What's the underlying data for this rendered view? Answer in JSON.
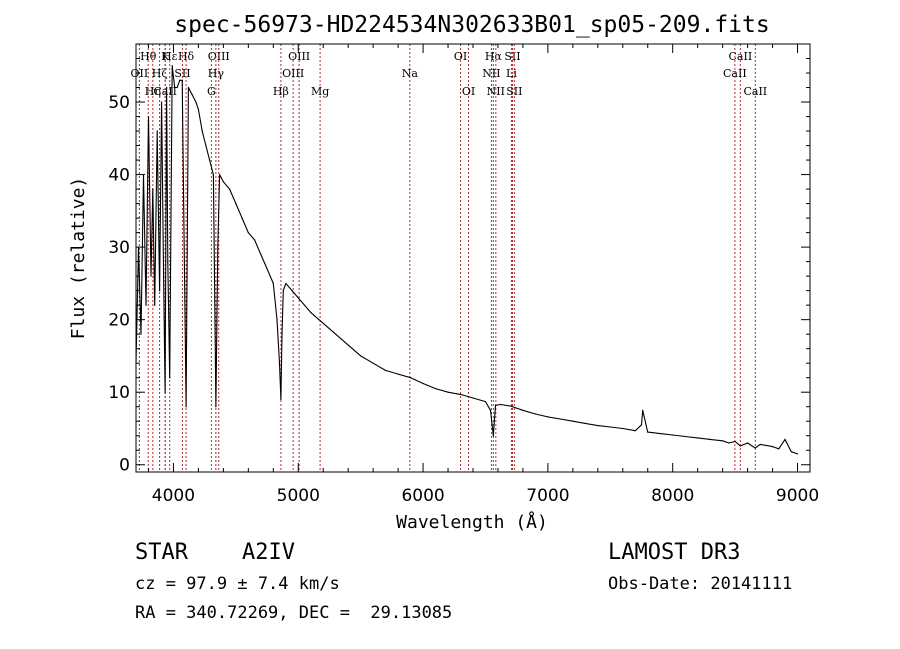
{
  "chart_data": {
    "type": "line",
    "title": "spec-56973-HD224534N302633B01_sp05-209.fits",
    "xlabel": "Wavelength (Å)",
    "ylabel": "Flux (relative)",
    "xlim": [
      3700,
      9100
    ],
    "ylim": [
      -1,
      58
    ],
    "xticks": [
      4000,
      5000,
      6000,
      7000,
      8000,
      9000
    ],
    "yticks": [
      0,
      10,
      20,
      30,
      40,
      50
    ],
    "series": [
      {
        "name": "spectrum",
        "color": "#000000",
        "x": [
          3700,
          3720,
          3740,
          3760,
          3780,
          3800,
          3820,
          3835,
          3850,
          3870,
          3889,
          3905,
          3920,
          3933,
          3945,
          3955,
          3970,
          3990,
          4010,
          4030,
          4050,
          4070,
          4101,
          4120,
          4150,
          4180,
          4200,
          4230,
          4260,
          4290,
          4320,
          4340,
          4355,
          4370,
          4400,
          4450,
          4500,
          4550,
          4600,
          4650,
          4700,
          4750,
          4800,
          4830,
          4850,
          4861,
          4870,
          4880,
          4900,
          4950,
          5000,
          5100,
          5200,
          5300,
          5400,
          5500,
          5600,
          5700,
          5800,
          5900,
          6000,
          6100,
          6200,
          6300,
          6400,
          6500,
          6540,
          6563,
          6580,
          6620,
          6700,
          6800,
          6900,
          7000,
          7100,
          7200,
          7300,
          7400,
          7500,
          7600,
          7700,
          7750,
          7760,
          7800,
          7900,
          8000,
          8100,
          8200,
          8300,
          8400,
          8450,
          8500,
          8542,
          8600,
          8662,
          8700,
          8800,
          8850,
          8900,
          8950,
          9000
        ],
        "values": [
          14,
          30,
          18,
          40,
          22,
          48,
          26,
          38,
          22,
          46,
          24,
          50,
          27,
          10,
          52,
          28,
          12,
          55,
          52,
          52,
          53,
          53,
          8,
          52,
          51,
          50,
          49,
          46,
          44,
          42,
          40,
          8,
          30,
          40,
          39,
          38,
          36,
          34,
          32,
          31,
          29,
          27,
          25,
          20,
          14,
          9,
          18,
          24,
          25,
          24,
          23,
          21,
          19.5,
          18,
          16.5,
          15,
          14,
          13,
          12.5,
          12,
          11.2,
          10.5,
          10,
          9.7,
          9.2,
          8.7,
          7.5,
          4,
          8.2,
          8.3,
          8.1,
          7.5,
          7,
          6.6,
          6.3,
          6,
          5.7,
          5.4,
          5.2,
          5,
          4.7,
          5.5,
          7.5,
          4.5,
          4.3,
          4.1,
          3.9,
          3.7,
          3.5,
          3.3,
          3,
          3.2,
          2.6,
          3,
          2.3,
          2.8,
          2.5,
          2.2,
          3.5,
          1.8,
          1.5
        ]
      }
    ],
    "lines": [
      {
        "label": "CaII",
        "wavelength": 3934,
        "row": 3
      },
      {
        "label": "OII",
        "wavelength": 3727,
        "row": 2
      },
      {
        "label": "Hθ",
        "wavelength": 3798,
        "row": 1
      },
      {
        "label": "Hη",
        "wavelength": 3835,
        "row": 3
      },
      {
        "label": "Hζ",
        "wavelength": 3889,
        "row": 2
      },
      {
        "label": "Hε",
        "wavelength": 3970,
        "row": 1
      },
      {
        "label": "K",
        "wavelength": 3934,
        "row": 1
      },
      {
        "label": "Hδ",
        "wavelength": 4101,
        "row": 1
      },
      {
        "label": "SII",
        "wavelength": 4072,
        "row": 2
      },
      {
        "label": "OIII",
        "wavelength": 4363,
        "row": 1
      },
      {
        "label": "Hγ",
        "wavelength": 4340,
        "row": 2
      },
      {
        "label": "G",
        "wavelength": 4304,
        "row": 3
      },
      {
        "label": "Hβ",
        "wavelength": 4861,
        "row": 3
      },
      {
        "label": "OIII",
        "wavelength": 5007,
        "row": 1
      },
      {
        "label": "OIII",
        "wavelength": 4959,
        "row": 2
      },
      {
        "label": "Mg",
        "wavelength": 5175,
        "row": 3
      },
      {
        "label": "Na",
        "wavelength": 5894,
        "row": 2
      },
      {
        "label": "OI",
        "wavelength": 6300,
        "row": 1
      },
      {
        "label": "OI",
        "wavelength": 6364,
        "row": 3
      },
      {
        "label": "Hα",
        "wavelength": 6563,
        "row": 1
      },
      {
        "label": "NII",
        "wavelength": 6548,
        "row": 2
      },
      {
        "label": "NII",
        "wavelength": 6583,
        "row": 3
      },
      {
        "label": "SII",
        "wavelength": 6716,
        "row": 1
      },
      {
        "label": "Li",
        "wavelength": 6708,
        "row": 2
      },
      {
        "label": "SII",
        "wavelength": 6731,
        "row": 3
      },
      {
        "label": "CaII",
        "wavelength": 8542,
        "row": 1
      },
      {
        "label": "CaII",
        "wavelength": 8498,
        "row": 2
      },
      {
        "label": "CaII",
        "wavelength": 8662,
        "row": 3
      }
    ]
  },
  "info": {
    "object_class": "STAR",
    "subclass": "A2IV",
    "survey": "LAMOST DR3",
    "cz": "cz = 97.9 ± 7.4 km/s",
    "obs_date": "Obs-Date: 20141111",
    "coords": "RA = 340.72269, DEC =  29.13085"
  }
}
